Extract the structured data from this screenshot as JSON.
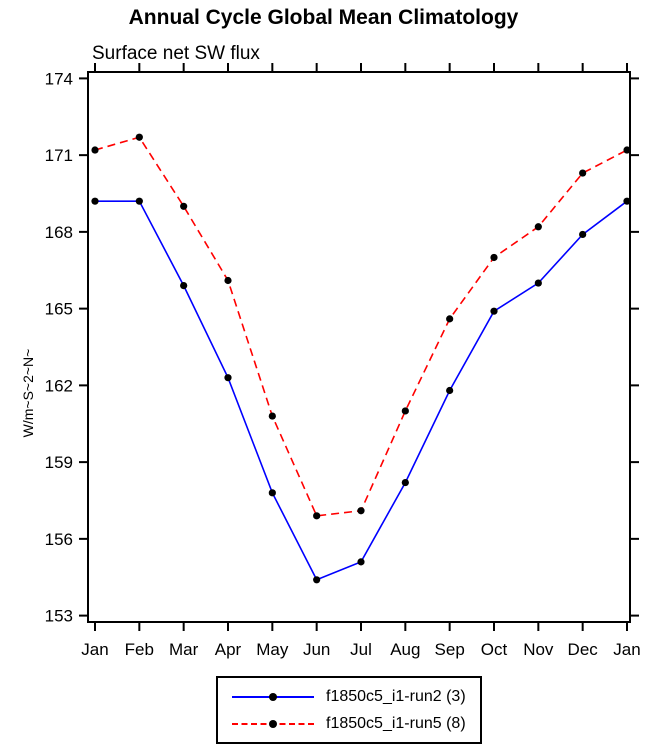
{
  "chart_data": {
    "type": "line",
    "title": "Annual Cycle Global Mean Climatology",
    "subtitle": "Surface net SW flux",
    "ylabel": "W/m~S~2~N~",
    "xlabel": "",
    "categories": [
      "Jan",
      "Feb",
      "Mar",
      "Apr",
      "May",
      "Jun",
      "Jul",
      "Aug",
      "Sep",
      "Oct",
      "Nov",
      "Dec",
      "Jan"
    ],
    "yticks": [
      153,
      156,
      159,
      162,
      165,
      168,
      171,
      174
    ],
    "ylim": [
      152.75,
      174.25
    ],
    "grid": false,
    "legend_position": "bottom-center",
    "marker_color": "#000000",
    "frame_color": "#000000",
    "series": [
      {
        "name": "f1850c5_i1-run2 (3)",
        "color": "#0000ff",
        "style": "solid",
        "marker": "circle",
        "values": [
          169.2,
          169.2,
          165.9,
          162.3,
          157.8,
          154.4,
          155.1,
          158.2,
          161.8,
          164.9,
          166.0,
          167.9,
          169.2
        ]
      },
      {
        "name": "f1850c5_i1-run5 (8)",
        "color": "#ff0000",
        "style": "dashed",
        "marker": "circle",
        "values": [
          171.2,
          171.7,
          169.0,
          166.1,
          160.8,
          156.9,
          157.1,
          161.0,
          164.6,
          167.0,
          168.2,
          170.3,
          171.2
        ]
      }
    ]
  }
}
